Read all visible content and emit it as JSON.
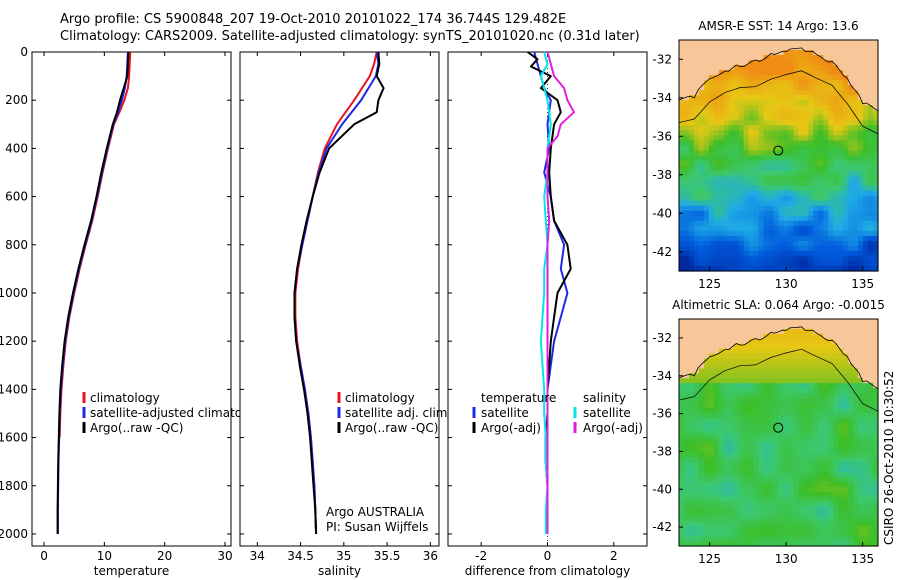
{
  "header": {
    "line1": "Argo profile: CS 5900848_207 19-Oct-2010 20101022_174 36.744S 129.482E",
    "line2": "Climatology: CARS2009. Satellite-adjusted climatology: synTS_20101020.nc (0.31d later)"
  },
  "side_label": "CSIRO 26-Oct-2010 10:30:52",
  "colors": {
    "climatology": "#e8141e",
    "satellite": "#1e28e6",
    "argo": "#000000",
    "sal_satellite": "#00e6e6",
    "sal_argo": "#e01ee0",
    "land": "#f7c79a"
  },
  "chart_data": [
    {
      "type": "line",
      "id": "temperature",
      "xlabel": "temperature",
      "ylabel": "",
      "xlim": [
        -2,
        31
      ],
      "ylim": [
        2050,
        0
      ],
      "xticks": [
        0,
        10,
        20,
        30
      ],
      "yticks": [
        0,
        200,
        400,
        600,
        800,
        1000,
        1200,
        1400,
        1600,
        1800,
        2000
      ],
      "legend": {
        "placement": "lower-right",
        "entries": [
          "climatology",
          "satellite-adjusted climatology",
          "Argo(..raw -QC)"
        ]
      },
      "series": [
        {
          "name": "climatology",
          "color": "#e8141e",
          "y": [
            0,
            50,
            100,
            150,
            200,
            250,
            300,
            400,
            500,
            600,
            700,
            800,
            900,
            1000,
            1100,
            1200,
            1300,
            1400,
            1500,
            1600
          ],
          "x": [
            14.3,
            14.2,
            14.1,
            13.9,
            13.3,
            12.5,
            11.6,
            10.6,
            9.7,
            8.9,
            8.0,
            6.9,
            5.9,
            5.0,
            4.2,
            3.6,
            3.2,
            2.9,
            2.7,
            2.6
          ]
        },
        {
          "name": "satellite-adjusted climatology",
          "color": "#1e28e6",
          "y": [
            0,
            50,
            100,
            150,
            200,
            250,
            300,
            400,
            500,
            600,
            700,
            800,
            900,
            1000,
            1100,
            1200,
            1300,
            1400,
            1500,
            1600,
            1700,
            1800,
            1900,
            2000
          ],
          "x": [
            13.9,
            13.8,
            13.7,
            13.4,
            12.9,
            12.3,
            11.5,
            10.5,
            9.6,
            8.8,
            7.9,
            6.8,
            5.8,
            4.9,
            4.1,
            3.5,
            3.1,
            2.8,
            2.6,
            2.5,
            2.4,
            2.35,
            2.3,
            2.3
          ]
        },
        {
          "name": "Argo(..raw -QC)",
          "color": "#000000",
          "y": [
            0,
            50,
            100,
            150,
            200,
            250,
            300,
            400,
            500,
            600,
            700,
            800,
            900,
            1000,
            1100,
            1200,
            1300,
            1400,
            1500,
            1600,
            1700,
            1800,
            1900,
            2000
          ],
          "x": [
            14.0,
            13.9,
            13.8,
            13.2,
            12.6,
            12.1,
            11.4,
            10.4,
            9.5,
            8.7,
            7.8,
            6.7,
            5.7,
            4.8,
            4.0,
            3.4,
            3.0,
            2.7,
            2.55,
            2.45,
            2.35,
            2.3,
            2.25,
            2.25
          ]
        }
      ]
    },
    {
      "type": "line",
      "id": "salinity",
      "xlabel": "salinity",
      "ylabel": "",
      "xlim": [
        33.8,
        36.1
      ],
      "ylim": [
        2050,
        0
      ],
      "xticks": [
        34,
        34.5,
        35,
        35.5,
        36
      ],
      "yticks": [
        0,
        200,
        400,
        600,
        800,
        1000,
        1200,
        1400,
        1600,
        1800,
        2000
      ],
      "legend": {
        "placement": "lower-right",
        "entries": [
          "climatology",
          "satellite adj. clim.",
          "Argo(..raw -QC)"
        ]
      },
      "annotation": [
        "Argo AUSTRALIA",
        "PI: Susan Wijffels"
      ],
      "series": [
        {
          "name": "climatology",
          "color": "#e8141e",
          "y": [
            0,
            50,
            100,
            200,
            300,
            400,
            500,
            600,
            700,
            800,
            900,
            1000,
            1100,
            1200,
            1300,
            1400,
            1500,
            1600,
            1700,
            1800,
            1900,
            2000
          ],
          "x": [
            35.38,
            35.35,
            35.3,
            35.12,
            34.92,
            34.78,
            34.7,
            34.64,
            34.58,
            34.52,
            34.47,
            34.44,
            34.44,
            34.46,
            34.5,
            34.55,
            34.59,
            34.62,
            34.64,
            34.66,
            34.67,
            34.68
          ]
        },
        {
          "name": "satellite adj. clim.",
          "color": "#1e28e6",
          "y": [
            0,
            50,
            100,
            200,
            300,
            400,
            500,
            600,
            700,
            800,
            900,
            1000,
            1100,
            1200,
            1300,
            1400,
            1500,
            1600,
            1700,
            1800,
            1900,
            2000
          ],
          "x": [
            35.38,
            35.4,
            35.37,
            35.2,
            34.98,
            34.8,
            34.71,
            34.64,
            34.58,
            34.52,
            34.46,
            34.43,
            34.43,
            34.45,
            34.5,
            34.55,
            34.59,
            34.62,
            34.64,
            34.66,
            34.67,
            34.68
          ]
        },
        {
          "name": "Argo(..raw -QC)",
          "color": "#000000",
          "y": [
            0,
            50,
            100,
            150,
            200,
            250,
            300,
            400,
            500,
            600,
            700,
            800,
            900,
            1000,
            1100,
            1200,
            1300,
            1400,
            1500,
            1600,
            1700,
            1800,
            1900,
            2000
          ],
          "x": [
            35.4,
            35.41,
            35.38,
            35.46,
            35.4,
            35.38,
            35.12,
            34.83,
            34.72,
            34.64,
            34.57,
            34.51,
            34.46,
            34.43,
            34.43,
            34.45,
            34.49,
            34.54,
            34.58,
            34.61,
            34.63,
            34.65,
            34.67,
            34.68
          ]
        }
      ]
    },
    {
      "type": "line",
      "id": "difference",
      "xlabel": "difference from climatology",
      "ylabel": "",
      "xlim": [
        -3,
        3
      ],
      "ylim": [
        2050,
        0
      ],
      "xticks": [
        -2,
        0,
        2
      ],
      "yticks": [
        0,
        200,
        400,
        600,
        800,
        1000,
        1200,
        1400,
        1600,
        1800,
        2000
      ],
      "legend": {
        "placement": "lower-center",
        "columns": [
          [
            "temperature",
            "satellite",
            "Argo(-adj)"
          ],
          [
            "salinity",
            "satellite",
            "Argo(-adj)"
          ]
        ]
      },
      "series": [
        {
          "name": "temperature satellite",
          "color": "#1e28e6",
          "y": [
            0,
            50,
            100,
            150,
            200,
            300,
            400,
            500,
            600,
            700,
            800,
            900,
            1000,
            1100,
            1200,
            1300,
            1400,
            1500,
            1600,
            1700,
            1800,
            1900,
            2000
          ],
          "x": [
            -0.4,
            -0.3,
            -0.2,
            -0.1,
            0.1,
            0.0,
            0.05,
            -0.1,
            0.1,
            0.2,
            0.5,
            0.4,
            0.6,
            0.4,
            0.2,
            0.1,
            0.0,
            0.0,
            -0.05,
            -0.05,
            0.0,
            0.0,
            0.0
          ]
        },
        {
          "name": "temperature Argo(-adj)",
          "color": "#000000",
          "y": [
            0,
            30,
            60,
            100,
            150,
            200,
            250,
            300,
            400,
            500,
            600,
            700,
            800,
            900,
            1000,
            1100,
            1200,
            1300,
            1400,
            1500,
            1600,
            1700,
            1800,
            1900,
            2000
          ],
          "x": [
            -0.6,
            -0.3,
            -0.5,
            0.1,
            -0.2,
            0.3,
            0.4,
            0.2,
            0.1,
            0.05,
            0.1,
            0.2,
            0.6,
            0.7,
            0.3,
            0.2,
            0.1,
            0.05,
            0.0,
            0.0,
            -0.05,
            -0.05,
            0.0,
            0.0,
            0.0
          ]
        },
        {
          "name": "salinity satellite",
          "color": "#00e6e6",
          "y": [
            0,
            50,
            100,
            200,
            300,
            400,
            500,
            600,
            700,
            800,
            900,
            1000,
            1100,
            1200,
            1300,
            1400,
            1500,
            1600,
            1700,
            1800,
            1900,
            2000
          ],
          "x": [
            -0.1,
            0.0,
            -0.2,
            0.0,
            0.1,
            0.0,
            0.0,
            -0.1,
            -0.05,
            0.0,
            -0.1,
            -0.1,
            -0.15,
            -0.2,
            -0.15,
            -0.1,
            -0.1,
            -0.05,
            -0.05,
            0.0,
            -0.05,
            -0.05
          ]
        },
        {
          "name": "salinity Argo(-adj)",
          "color": "#e01ee0",
          "y": [
            0,
            50,
            100,
            150,
            200,
            250,
            300,
            350,
            400,
            500,
            600,
            700,
            800,
            900,
            1000,
            1200,
            1400,
            1600,
            1800,
            2000
          ],
          "x": [
            0.0,
            0.1,
            0.2,
            0.5,
            0.6,
            0.8,
            0.4,
            0.3,
            0.0,
            0.0,
            0.0,
            0.05,
            0.0,
            0.0,
            0.0,
            0.0,
            0.0,
            0.0,
            0.0,
            0.0
          ]
        }
      ]
    },
    {
      "type": "heatmap",
      "id": "sst_map",
      "title": "AMSR-E SST: 14 Argo: 13.6",
      "xlim": [
        123,
        136
      ],
      "ylim": [
        -43,
        -31
      ],
      "xticks": [
        125,
        130,
        135
      ],
      "yticks": [
        -32,
        -34,
        -36,
        -38,
        -40,
        -42
      ],
      "marker": {
        "lon": 129.482,
        "lat": -36.744
      }
    },
    {
      "type": "heatmap",
      "id": "sla_map",
      "title": "Altimetric SLA: 0.064 Argo: -0.0015",
      "xlim": [
        123,
        136
      ],
      "ylim": [
        -43,
        -31
      ],
      "xticks": [
        125,
        130,
        135
      ],
      "yticks": [
        -32,
        -34,
        -36,
        -38,
        -40,
        -42
      ],
      "marker": {
        "lon": 129.482,
        "lat": -36.744
      }
    }
  ]
}
